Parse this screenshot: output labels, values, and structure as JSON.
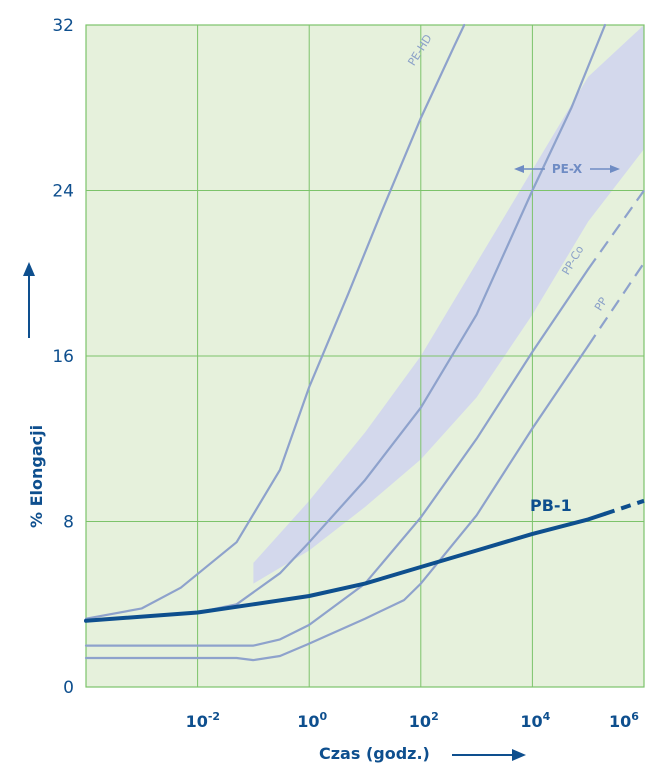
{
  "chart_data": {
    "type": "line",
    "xlabel": "Czas (godz.)",
    "ylabel": "% Elongacji",
    "x_scale": "log",
    "xlim": [
      0.0001,
      1000000
    ],
    "ylim": [
      0,
      32
    ],
    "x_ticks": [
      {
        "value": 0.01,
        "base": "10",
        "exp": "-2"
      },
      {
        "value": 1,
        "base": "10",
        "exp": "0"
      },
      {
        "value": 100,
        "base": "10",
        "exp": "2"
      },
      {
        "value": 10000,
        "base": "10",
        "exp": "4"
      },
      {
        "value": 1000000,
        "base": "10",
        "exp": "6"
      }
    ],
    "y_ticks": [
      0,
      8,
      16,
      24,
      32
    ],
    "grid": true,
    "band": {
      "name": "PE-X",
      "upper": [
        [
          0.1,
          6.0
        ],
        [
          1,
          9.0
        ],
        [
          10,
          12.3
        ],
        [
          100,
          16.0
        ],
        [
          1000,
          20.5
        ],
        [
          10000,
          25.0
        ],
        [
          100000,
          29.5
        ],
        [
          1000000,
          32.0
        ]
      ],
      "lower": [
        [
          0.1,
          5.0
        ],
        [
          1,
          6.6
        ],
        [
          10,
          8.7
        ],
        [
          100,
          11.0
        ],
        [
          1000,
          14.0
        ],
        [
          10000,
          18.0
        ],
        [
          100000,
          22.5
        ],
        [
          1000000,
          26.0
        ]
      ]
    },
    "series": [
      {
        "name": "PE-HD",
        "points": [
          [
            0.0001,
            3.3
          ],
          [
            0.001,
            3.8
          ],
          [
            0.005,
            4.8
          ],
          [
            0.05,
            7.0
          ],
          [
            0.3,
            10.5
          ],
          [
            1,
            14.5
          ],
          [
            5,
            19.0
          ],
          [
            20,
            23.0
          ],
          [
            100,
            27.5
          ],
          [
            400,
            31.0
          ],
          [
            600,
            32.0
          ]
        ],
        "dashed_from": null
      },
      {
        "name": "PE-X",
        "points": [
          [
            0.0001,
            3.2
          ],
          [
            0.001,
            3.4
          ],
          [
            0.01,
            3.6
          ],
          [
            0.05,
            4.0
          ],
          [
            0.3,
            5.5
          ],
          [
            1,
            7.0
          ],
          [
            10,
            10.0
          ],
          [
            100,
            13.5
          ],
          [
            1000,
            18.0
          ],
          [
            10000,
            24.0
          ],
          [
            50000,
            28.0
          ],
          [
            200000,
            32.0
          ]
        ],
        "dashed_from": null
      },
      {
        "name": "PP-Co",
        "points": [
          [
            0.0001,
            2.0
          ],
          [
            0.1,
            2.0
          ],
          [
            0.3,
            2.3
          ],
          [
            1,
            3.0
          ],
          [
            10,
            5.0
          ],
          [
            100,
            8.2
          ],
          [
            1000,
            12.0
          ],
          [
            10000,
            16.2
          ],
          [
            100000,
            20.2
          ],
          [
            1000000,
            24.0
          ]
        ],
        "dashed_from": 100000
      },
      {
        "name": "PP",
        "points": [
          [
            0.0001,
            1.4
          ],
          [
            0.05,
            1.4
          ],
          [
            0.1,
            1.3
          ],
          [
            0.3,
            1.5
          ],
          [
            1,
            2.1
          ],
          [
            10,
            3.3
          ],
          [
            50,
            4.2
          ],
          [
            100,
            5.0
          ],
          [
            1000,
            8.3
          ],
          [
            10000,
            12.5
          ],
          [
            100000,
            16.5
          ],
          [
            1000000,
            20.5
          ]
        ],
        "dashed_from": 100000
      },
      {
        "name": "PB-1",
        "points": [
          [
            0.0001,
            3.2
          ],
          [
            0.01,
            3.6
          ],
          [
            0.1,
            4.0
          ],
          [
            1,
            4.4
          ],
          [
            10,
            5.0
          ],
          [
            100,
            5.8
          ],
          [
            1000,
            6.6
          ],
          [
            10000,
            7.4
          ],
          [
            100000,
            8.1
          ],
          [
            1000000,
            9.0
          ]
        ],
        "dashed_from": 200000
      }
    ]
  }
}
